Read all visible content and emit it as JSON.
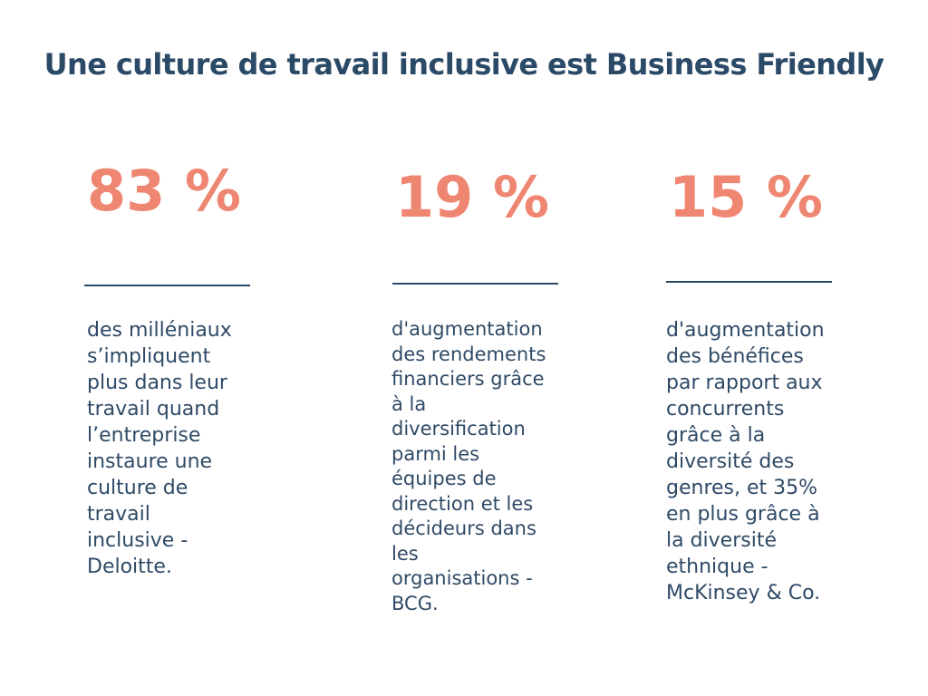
{
  "title": "Une culture de travail inclusive est Business Friendly",
  "stats": [
    {
      "value": "83 %",
      "description": "des milléniaux\ns’impliquent\nplus dans leur\ntravail quand\nl’entreprise\ninstaure une\nculture de\ntravail\ninclusive -\nDeloitte."
    },
    {
      "value": "19 %",
      "description": "d'augmentation\ndes rendements\nfinanciers grâce\nà la\ndiversification\nparmi les\néquipes de\ndirection et les\ndécideurs dans\nles\norganisations -\nBCG."
    },
    {
      "value": "15 %",
      "description": "d'augmentation\ndes bénéfices\npar rapport aux\nconcurrents\ngrâce à la\ndiversité des\ngenres, et 35%\nen plus grâce à\nla diversité\nethnique -\nMcKinsey & Co."
    }
  ],
  "colors": {
    "title": "#2b4a67",
    "value": "#ef8672",
    "rule": "#2b4a67",
    "text": "#2f4a66",
    "background": "#ffffff"
  }
}
